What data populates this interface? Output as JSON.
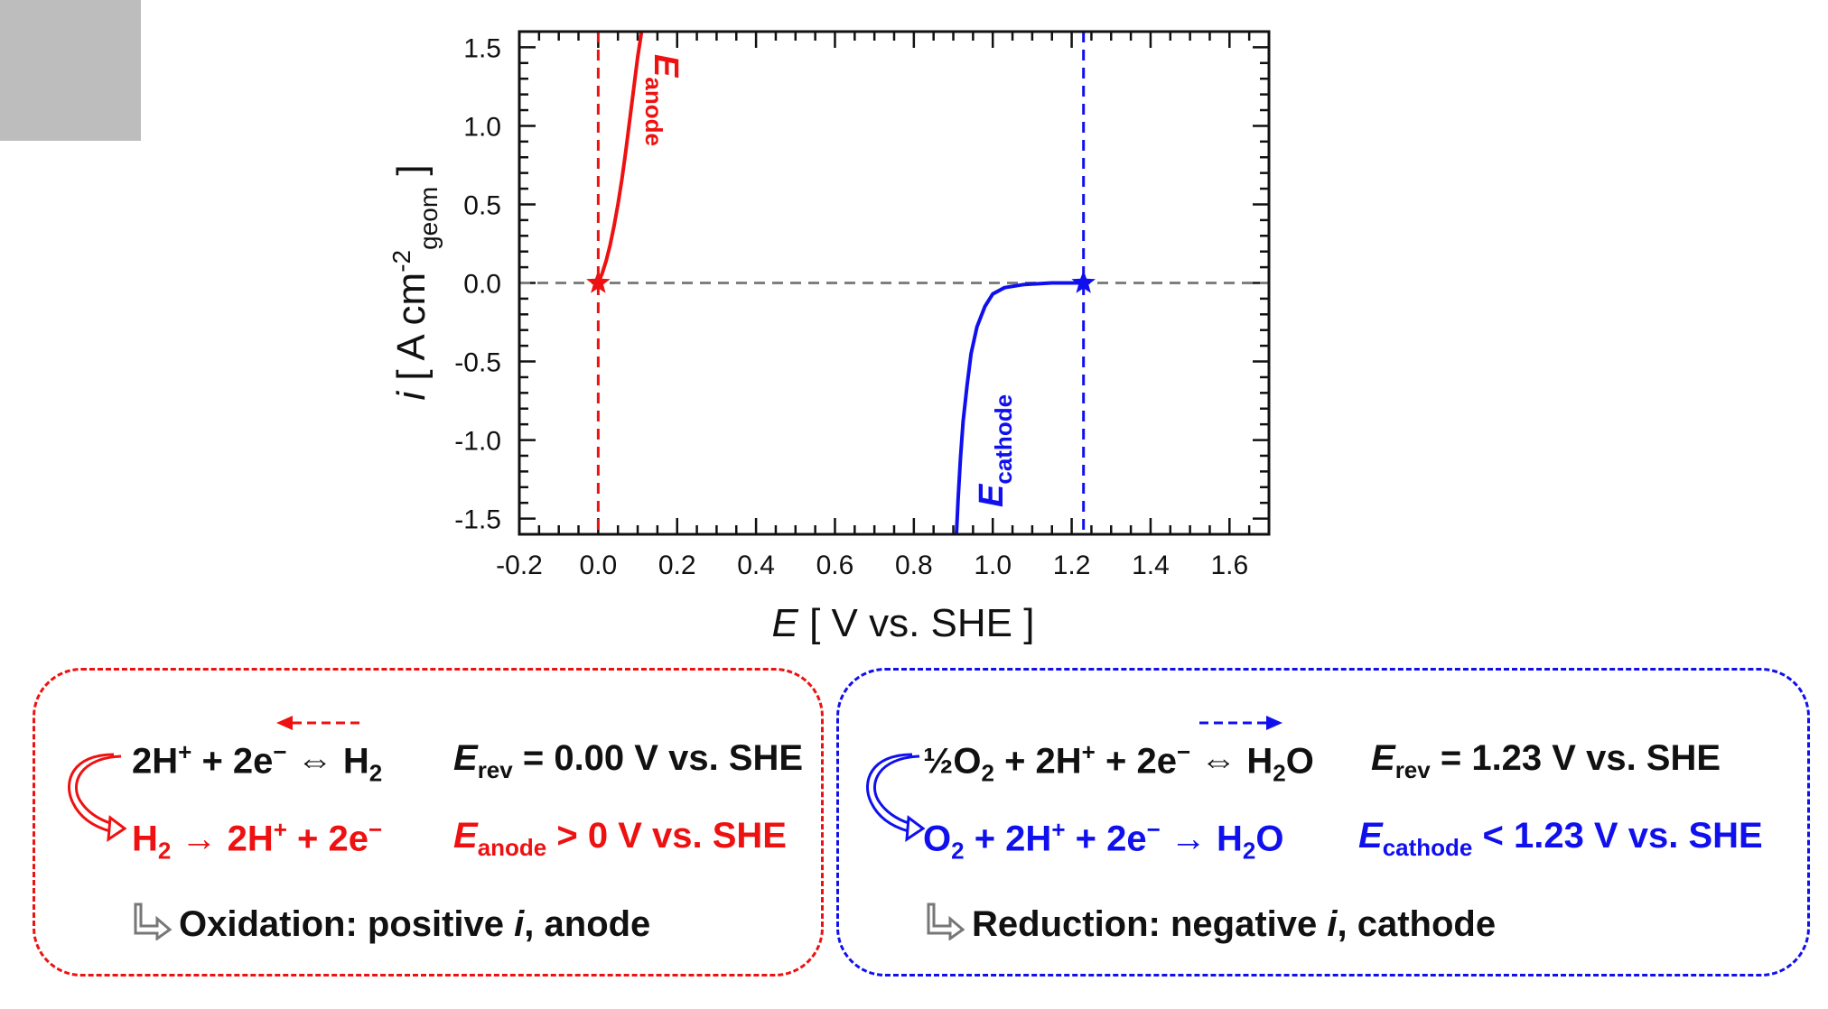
{
  "chart_data": {
    "type": "line",
    "xlabel": "E [ V vs. SHE ]",
    "ylabel": "i [ A cm-2geom ]",
    "xlim": [
      -0.2,
      1.7
    ],
    "ylim": [
      -1.6,
      1.6
    ],
    "x_ticks": [
      "-0.2",
      "0.0",
      "0.2",
      "0.4",
      "0.6",
      "0.8",
      "1.0",
      "1.2",
      "1.4",
      "1.6"
    ],
    "y_ticks": [
      "1.5",
      "1.0",
      "0.5",
      "0.0",
      "-0.5",
      "-1.0",
      "-1.5"
    ],
    "grid": false,
    "series": [
      {
        "name": "Eanode",
        "color": "#ee1111",
        "x": [
          0.0,
          0.01,
          0.02,
          0.03,
          0.04,
          0.05,
          0.06,
          0.07,
          0.08,
          0.09,
          0.1,
          0.11
        ],
        "y": [
          0.0,
          0.06,
          0.14,
          0.24,
          0.36,
          0.5,
          0.66,
          0.84,
          1.04,
          1.24,
          1.44,
          1.6
        ]
      },
      {
        "name": "Ecathode",
        "color": "#1010ee",
        "x": [
          1.23,
          1.15,
          1.08,
          1.03,
          1.0,
          0.98,
          0.96,
          0.945,
          0.935,
          0.925,
          0.918,
          0.912,
          0.908
        ],
        "y": [
          0.0,
          0.0,
          -0.01,
          -0.03,
          -0.07,
          -0.15,
          -0.28,
          -0.45,
          -0.65,
          -0.88,
          -1.12,
          -1.38,
          -1.6
        ]
      }
    ],
    "reference_lines": [
      {
        "orientation": "vertical",
        "value": 0.0,
        "color": "#ee1111"
      },
      {
        "orientation": "vertical",
        "value": 1.23,
        "color": "#1010ee"
      },
      {
        "orientation": "horizontal",
        "value": 0.0,
        "color": "#7f7f7f"
      }
    ],
    "markers": [
      {
        "x": 0.0,
        "y": 0.0,
        "shape": "star",
        "color": "#ee1111"
      },
      {
        "x": 1.23,
        "y": 0.0,
        "shape": "star",
        "color": "#1010ee"
      }
    ],
    "annotations": [
      {
        "base": "E",
        "sub": "anode",
        "color": "#ee1111"
      },
      {
        "base": "E",
        "sub": "cathode",
        "color": "#1010ee"
      }
    ]
  },
  "panels": {
    "anode": {
      "eq1": {
        "a": "2H",
        "a_sup": "+",
        "b": " + 2e",
        "b_sup": "−",
        "c": " ⇔ H",
        "c_sub": "2"
      },
      "erev": {
        "base": "E",
        "sub": "rev",
        "text": " = 0.00 V vs. SHE"
      },
      "eq2": {
        "a": "H",
        "a_sub": "2",
        "b": " → 2H",
        "b_sup": "+",
        "c": " + 2e",
        "c_sup": "−"
      },
      "econd": {
        "base": "E",
        "sub": "anode",
        "text": " > 0 V vs. SHE"
      },
      "summary": {
        "a": "Oxidation: positive ",
        "i": "i",
        "b": ", anode"
      }
    },
    "cathode": {
      "eq1": {
        "a": "½O",
        "a_sub": "2",
        "b": " + 2H",
        "b_sup": "+",
        "c": " + 2e",
        "c_sup": "−",
        "d": " ⇔ H",
        "d_sub": "2",
        "e": "O"
      },
      "erev": {
        "base": "E",
        "sub": "rev",
        "text": " = 1.23 V vs. SHE"
      },
      "eq2": {
        "a": "O",
        "a_sub": "2",
        "b": " + 2H",
        "b_sup": "+",
        "c": " + 2e",
        "c_sup": "−",
        "d": " → H",
        "d_sub": "2",
        "e": "O"
      },
      "econd": {
        "base": "E",
        "sub": "cathode",
        "text": " < 1.23 V vs. SHE"
      },
      "summary": {
        "a": "Reduction: negative ",
        "i": "i",
        "b": ", cathode"
      }
    }
  }
}
